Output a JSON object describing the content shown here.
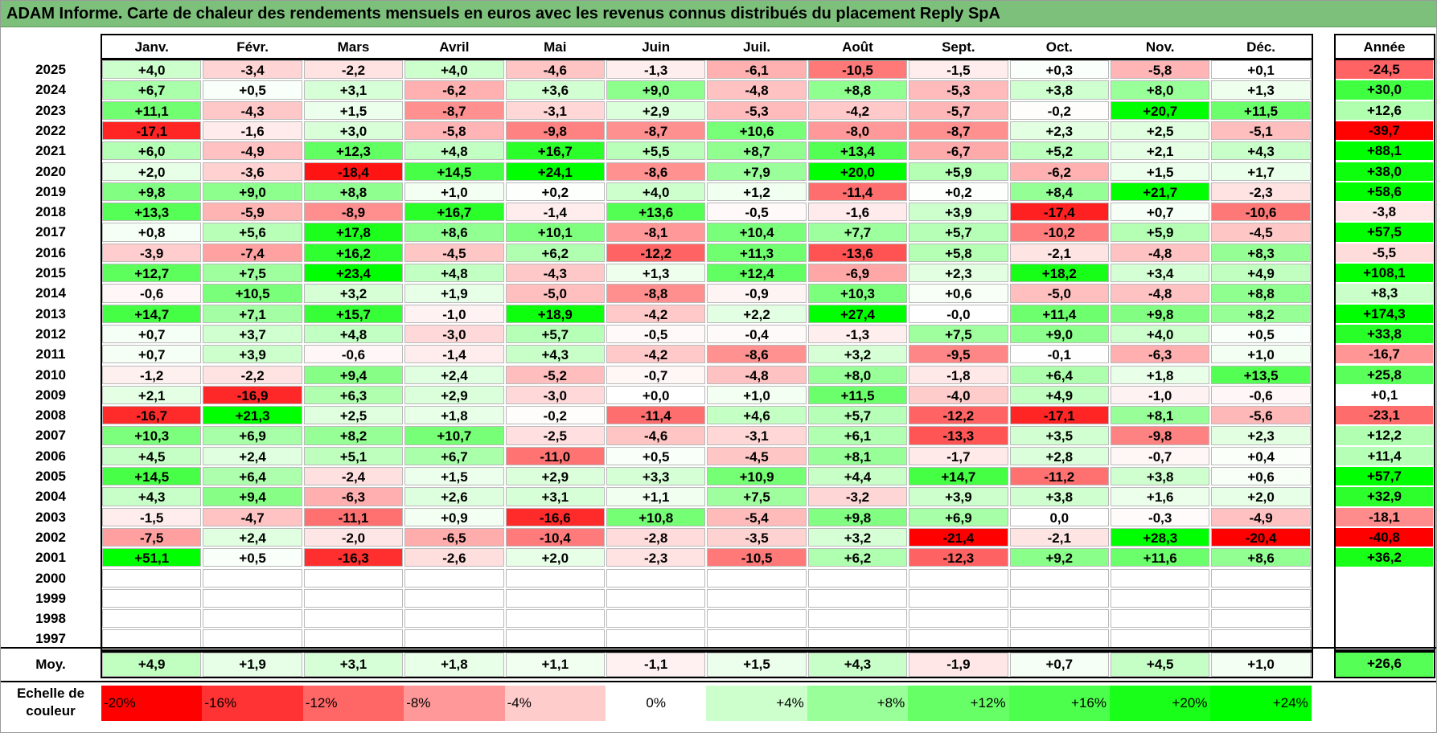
{
  "title": "ADAM Informe. Carte de chaleur des rendements mensuels en euros avec les revenus connus distribués du placement Reply SpA",
  "chart_data": {
    "type": "heatmap",
    "columns": [
      "Janv.",
      "Févr.",
      "Mars",
      "Avril",
      "Mai",
      "Juin",
      "Juil.",
      "Août",
      "Sept.",
      "Oct.",
      "Nov.",
      "Déc."
    ],
    "annual_header": "Année",
    "unit": "%",
    "rows": [
      {
        "year": "2025",
        "values": [
          "+4,0",
          "-3,4",
          "-2,2",
          "+4,0",
          "-4,6",
          "-1,3",
          "-6,1",
          "-10,5",
          "-1,5",
          "+0,3",
          "-5,8",
          "+0,1"
        ],
        "annual": "-24,5"
      },
      {
        "year": "2024",
        "values": [
          "+6,7",
          "+0,5",
          "+3,1",
          "-6,2",
          "+3,6",
          "+9,0",
          "-4,8",
          "+8,8",
          "-5,3",
          "+3,8",
          "+8,0",
          "+1,3"
        ],
        "annual": "+30,0"
      },
      {
        "year": "2023",
        "values": [
          "+11,1",
          "-4,3",
          "+1,5",
          "-8,7",
          "-3,1",
          "+2,9",
          "-5,3",
          "-4,2",
          "-5,7",
          "-0,2",
          "+20,7",
          "+11,5"
        ],
        "annual": "+12,6"
      },
      {
        "year": "2022",
        "values": [
          "-17,1",
          "-1,6",
          "+3,0",
          "-5,8",
          "-9,8",
          "-8,7",
          "+10,6",
          "-8,0",
          "-8,7",
          "+2,3",
          "+2,5",
          "-5,1"
        ],
        "annual": "-39,7"
      },
      {
        "year": "2021",
        "values": [
          "+6,0",
          "-4,9",
          "+12,3",
          "+4,8",
          "+16,7",
          "+5,5",
          "+8,7",
          "+13,4",
          "-6,7",
          "+5,2",
          "+2,1",
          "+4,3"
        ],
        "annual": "+88,1"
      },
      {
        "year": "2020",
        "values": [
          "+2,0",
          "-3,6",
          "-18,4",
          "+14,5",
          "+24,1",
          "-8,6",
          "+7,9",
          "+20,0",
          "+5,9",
          "-6,2",
          "+1,5",
          "+1,7"
        ],
        "annual": "+38,0"
      },
      {
        "year": "2019",
        "values": [
          "+9,8",
          "+9,0",
          "+8,8",
          "+1,0",
          "+0,2",
          "+4,0",
          "+1,2",
          "-11,4",
          "+0,2",
          "+8,4",
          "+21,7",
          "-2,3"
        ],
        "annual": "+58,6"
      },
      {
        "year": "2018",
        "values": [
          "+13,3",
          "-5,9",
          "-8,9",
          "+16,7",
          "-1,4",
          "+13,6",
          "-0,5",
          "-1,6",
          "+3,9",
          "-17,4",
          "+0,7",
          "-10,6"
        ],
        "annual": "-3,8"
      },
      {
        "year": "2017",
        "values": [
          "+0,8",
          "+5,6",
          "+17,8",
          "+8,6",
          "+10,1",
          "-8,1",
          "+10,4",
          "+7,7",
          "+5,7",
          "-10,2",
          "+5,9",
          "-4,5"
        ],
        "annual": "+57,5"
      },
      {
        "year": "2016",
        "values": [
          "-3,9",
          "-7,4",
          "+16,2",
          "-4,5",
          "+6,2",
          "-12,2",
          "+11,3",
          "-13,6",
          "+5,8",
          "-2,1",
          "-4,8",
          "+8,3"
        ],
        "annual": "-5,5"
      },
      {
        "year": "2015",
        "values": [
          "+12,7",
          "+7,5",
          "+23,4",
          "+4,8",
          "-4,3",
          "+1,3",
          "+12,4",
          "-6,9",
          "+2,3",
          "+18,2",
          "+3,4",
          "+4,9"
        ],
        "annual": "+108,1"
      },
      {
        "year": "2014",
        "values": [
          "-0,6",
          "+10,5",
          "+3,2",
          "+1,9",
          "-5,0",
          "-8,8",
          "-0,9",
          "+10,3",
          "+0,6",
          "-5,0",
          "-4,8",
          "+8,8"
        ],
        "annual": "+8,3"
      },
      {
        "year": "2013",
        "values": [
          "+14,7",
          "+7,1",
          "+15,7",
          "-1,0",
          "+18,9",
          "-4,2",
          "+2,2",
          "+27,4",
          "-0,0",
          "+11,4",
          "+9,8",
          "+8,2"
        ],
        "annual": "+174,3"
      },
      {
        "year": "2012",
        "values": [
          "+0,7",
          "+3,7",
          "+4,8",
          "-3,0",
          "+5,7",
          "-0,5",
          "-0,4",
          "-1,3",
          "+7,5",
          "+9,0",
          "+4,0",
          "+0,5"
        ],
        "annual": "+33,8"
      },
      {
        "year": "2011",
        "values": [
          "+0,7",
          "+3,9",
          "-0,6",
          "-1,4",
          "+4,3",
          "-4,2",
          "-8,6",
          "+3,2",
          "-9,5",
          "-0,1",
          "-6,3",
          "+1,0"
        ],
        "annual": "-16,7"
      },
      {
        "year": "2010",
        "values": [
          "-1,2",
          "-2,2",
          "+9,4",
          "+2,4",
          "-5,2",
          "-0,7",
          "-4,8",
          "+8,0",
          "-1,8",
          "+6,4",
          "+1,8",
          "+13,5"
        ],
        "annual": "+25,8"
      },
      {
        "year": "2009",
        "values": [
          "+2,1",
          "-16,9",
          "+6,3",
          "+2,9",
          "-3,0",
          "+0,0",
          "+1,0",
          "+11,5",
          "-4,0",
          "+4,9",
          "-1,0",
          "-0,6"
        ],
        "annual": "+0,1"
      },
      {
        "year": "2008",
        "values": [
          "-16,7",
          "+21,3",
          "+2,5",
          "+1,8",
          "-0,2",
          "-11,4",
          "+4,6",
          "+5,7",
          "-12,2",
          "-17,1",
          "+8,1",
          "-5,6"
        ],
        "annual": "-23,1"
      },
      {
        "year": "2007",
        "values": [
          "+10,3",
          "+6,9",
          "+8,2",
          "+10,7",
          "-2,5",
          "-4,6",
          "-3,1",
          "+6,1",
          "-13,3",
          "+3,5",
          "-9,8",
          "+2,3"
        ],
        "annual": "+12,2"
      },
      {
        "year": "2006",
        "values": [
          "+4,5",
          "+2,4",
          "+5,1",
          "+6,7",
          "-11,0",
          "+0,5",
          "-4,5",
          "+8,1",
          "-1,7",
          "+2,8",
          "-0,7",
          "+0,4"
        ],
        "annual": "+11,4"
      },
      {
        "year": "2005",
        "values": [
          "+14,5",
          "+6,4",
          "-2,4",
          "+1,5",
          "+2,9",
          "+3,3",
          "+10,9",
          "+4,4",
          "+14,7",
          "-11,2",
          "+3,8",
          "+0,6"
        ],
        "annual": "+57,7"
      },
      {
        "year": "2004",
        "values": [
          "+4,3",
          "+9,4",
          "-6,3",
          "+2,6",
          "+3,1",
          "+1,1",
          "+7,5",
          "-3,2",
          "+3,9",
          "+3,8",
          "+1,6",
          "+2,0"
        ],
        "annual": "+32,9"
      },
      {
        "year": "2003",
        "values": [
          "-1,5",
          "-4,7",
          "-11,1",
          "+0,9",
          "-16,6",
          "+10,8",
          "-5,4",
          "+9,8",
          "+6,9",
          "0,0",
          "-0,3",
          "-4,9"
        ],
        "annual": "-18,1"
      },
      {
        "year": "2002",
        "values": [
          "-7,5",
          "+2,4",
          "-2,0",
          "-6,5",
          "-10,4",
          "-2,8",
          "-3,5",
          "+3,2",
          "-21,4",
          "-2,1",
          "+28,3",
          "-20,4"
        ],
        "annual": "-40,8"
      },
      {
        "year": "2001",
        "values": [
          "+51,1",
          "+0,5",
          "-16,3",
          "-2,6",
          "+2,0",
          "-2,3",
          "-10,5",
          "+6,2",
          "-12,3",
          "+9,2",
          "+11,6",
          "+8,6"
        ],
        "annual": "+36,2"
      },
      {
        "year": "2000",
        "values": [
          "",
          "",
          "",
          "",
          "",
          "",
          "",
          "",
          "",
          "",
          "",
          ""
        ],
        "annual": ""
      },
      {
        "year": "1999",
        "values": [
          "",
          "",
          "",
          "",
          "",
          "",
          "",
          "",
          "",
          "",
          "",
          ""
        ],
        "annual": ""
      },
      {
        "year": "1998",
        "values": [
          "",
          "",
          "",
          "",
          "",
          "",
          "",
          "",
          "",
          "",
          "",
          ""
        ],
        "annual": ""
      },
      {
        "year": "1997",
        "values": [
          "",
          "",
          "",
          "",
          "",
          "",
          "",
          "",
          "",
          "",
          "",
          ""
        ],
        "annual": ""
      }
    ],
    "average": {
      "label": "Moy.",
      "values": [
        "+4,9",
        "+1,9",
        "+3,1",
        "+1,8",
        "+1,1",
        "-1,1",
        "+1,5",
        "+4,3",
        "-1,9",
        "+0,7",
        "+4,5",
        "+1,0"
      ],
      "annual": "+26,6"
    },
    "color_scale": {
      "label": "Echelle de couleur",
      "stops": [
        {
          "text": "-20%",
          "value": -20,
          "color": "#ff0000"
        },
        {
          "text": "-16%",
          "value": -16,
          "color": "#ff3333"
        },
        {
          "text": "-12%",
          "value": -12,
          "color": "#ff6666"
        },
        {
          "text": "-8%",
          "value": -8,
          "color": "#ff9999"
        },
        {
          "text": "-4%",
          "value": -4,
          "color": "#ffcccc"
        },
        {
          "text": "0%",
          "value": 0,
          "color": "#ffffff"
        },
        {
          "text": "+4%",
          "value": 4,
          "color": "#ccffcc"
        },
        {
          "text": "+8%",
          "value": 8,
          "color": "#99ff99"
        },
        {
          "text": "+12%",
          "value": 12,
          "color": "#66ff66"
        },
        {
          "text": "+16%",
          "value": 16,
          "color": "#4dff4d"
        },
        {
          "text": "+20%",
          "value": 20,
          "color": "#1aff1a"
        },
        {
          "text": "+24%",
          "value": 24,
          "color": "#00ff00"
        }
      ],
      "annual_color_range": [
        -40,
        40
      ]
    }
  }
}
